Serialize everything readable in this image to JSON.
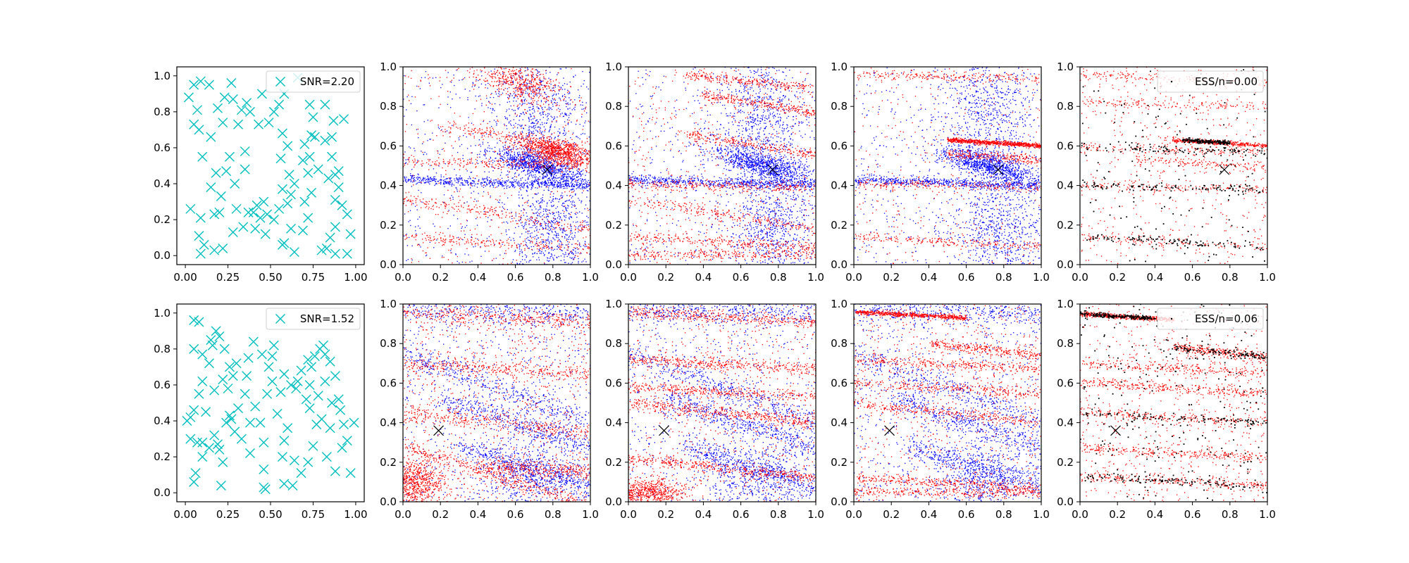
{
  "figure": {
    "layout": "2 rows x 5 columns of scatter panels",
    "background": "#ffffff"
  },
  "colors": {
    "sensor": "#00bfbf",
    "particle_blue": "#0000ff",
    "particle_red": "#ff0000",
    "particle_black": "#000000",
    "true_position": "#000000"
  },
  "chart_data": [
    {
      "type": "scatter",
      "row": 1,
      "col": 1,
      "panel": "sensors",
      "xlim": [
        -0.05,
        1.05
      ],
      "ylim": [
        -0.05,
        1.05
      ],
      "xticks": [
        "0.00",
        "0.25",
        "0.50",
        "0.75",
        "1.00"
      ],
      "yticks": [
        "0.0",
        "0.2",
        "0.4",
        "0.6",
        "0.8",
        "1.0"
      ],
      "marker": "x",
      "color": "#00bfbf",
      "approx_points": 100,
      "legend": {
        "label": "SNR=2.20",
        "position": "upper right"
      },
      "points": [
        [
          0.02,
          0.88
        ],
        [
          0.05,
          0.95
        ],
        [
          0.07,
          0.81
        ],
        [
          0.09,
          0.97
        ],
        [
          0.05,
          0.73
        ],
        [
          0.08,
          0.7
        ],
        [
          0.1,
          0.55
        ],
        [
          0.15,
          0.66
        ],
        [
          0.14,
          0.95
        ],
        [
          0.19,
          0.82
        ],
        [
          0.22,
          0.74
        ],
        [
          0.23,
          0.88
        ],
        [
          0.27,
          0.96
        ],
        [
          0.28,
          0.87
        ],
        [
          0.24,
          0.47
        ],
        [
          0.26,
          0.55
        ],
        [
          0.18,
          0.46
        ],
        [
          0.15,
          0.38
        ],
        [
          0.21,
          0.33
        ],
        [
          0.03,
          0.26
        ],
        [
          0.09,
          0.21
        ],
        [
          0.08,
          0.11
        ],
        [
          0.11,
          0.06
        ],
        [
          0.09,
          0.01
        ],
        [
          0.17,
          0.23
        ],
        [
          0.2,
          0.24
        ],
        [
          0.22,
          0.04
        ],
        [
          0.17,
          0.03
        ],
        [
          0.28,
          0.13
        ],
        [
          0.3,
          0.26
        ],
        [
          0.29,
          0.4
        ],
        [
          0.35,
          0.48
        ],
        [
          0.35,
          0.58
        ],
        [
          0.31,
          0.73
        ],
        [
          0.33,
          0.81
        ],
        [
          0.36,
          0.85
        ],
        [
          0.38,
          0.8
        ],
        [
          0.45,
          0.9
        ],
        [
          0.43,
          0.73
        ],
        [
          0.49,
          0.74
        ],
        [
          0.52,
          0.8
        ],
        [
          0.55,
          0.84
        ],
        [
          0.58,
          0.9
        ],
        [
          0.57,
          0.68
        ],
        [
          0.6,
          0.61
        ],
        [
          0.56,
          0.54
        ],
        [
          0.61,
          0.45
        ],
        [
          0.57,
          0.37
        ],
        [
          0.62,
          0.34
        ],
        [
          0.64,
          0.4
        ],
        [
          0.6,
          0.29
        ],
        [
          0.55,
          0.26
        ],
        [
          0.48,
          0.23
        ],
        [
          0.46,
          0.3
        ],
        [
          0.42,
          0.28
        ],
        [
          0.44,
          0.21
        ],
        [
          0.4,
          0.24
        ],
        [
          0.37,
          0.24
        ],
        [
          0.34,
          0.16
        ],
        [
          0.41,
          0.15
        ],
        [
          0.47,
          0.12
        ],
        [
          0.52,
          0.2
        ],
        [
          0.58,
          0.07
        ],
        [
          0.57,
          0.06
        ],
        [
          0.62,
          0.15
        ],
        [
          0.64,
          0.02
        ],
        [
          0.69,
          0.14
        ],
        [
          0.72,
          0.21
        ],
        [
          0.7,
          0.3
        ],
        [
          0.74,
          0.35
        ],
        [
          0.72,
          0.46
        ],
        [
          0.73,
          0.55
        ],
        [
          0.7,
          0.62
        ],
        [
          0.74,
          0.67
        ],
        [
          0.76,
          0.66
        ],
        [
          0.78,
          0.48
        ],
        [
          0.75,
          0.77
        ],
        [
          0.73,
          0.84
        ],
        [
          0.66,
          0.99
        ],
        [
          0.82,
          0.84
        ],
        [
          0.86,
          0.66
        ],
        [
          0.87,
          0.75
        ],
        [
          0.82,
          0.64
        ],
        [
          0.9,
          0.47
        ],
        [
          0.88,
          0.45
        ],
        [
          0.84,
          0.43
        ],
        [
          0.9,
          0.38
        ],
        [
          0.88,
          0.31
        ],
        [
          0.92,
          0.28
        ],
        [
          0.95,
          0.23
        ],
        [
          0.97,
          0.12
        ],
        [
          0.88,
          0.16
        ],
        [
          0.85,
          0.1
        ],
        [
          0.83,
          0.04
        ],
        [
          0.88,
          0.01
        ],
        [
          0.95,
          0.01
        ],
        [
          0.8,
          0.03
        ],
        [
          0.93,
          0.76
        ],
        [
          0.86,
          0.55
        ],
        [
          0.69,
          0.53
        ]
      ]
    },
    {
      "type": "scatter",
      "row": 1,
      "col": 2,
      "panel": "particles",
      "xlim": [
        0,
        1
      ],
      "ylim": [
        0,
        1
      ],
      "xticks": [
        "0.0",
        "0.2",
        "0.4",
        "0.6",
        "0.8",
        "1.0"
      ],
      "yticks": [
        "0.0",
        "0.2",
        "0.4",
        "0.6",
        "0.8",
        "1.0"
      ],
      "series": [
        {
          "color": "#0000ff",
          "approx_points": 3500
        },
        {
          "color": "#ff0000",
          "approx_points": 3500
        }
      ],
      "true_position": [
        0.77,
        0.48
      ]
    },
    {
      "type": "scatter",
      "row": 1,
      "col": 3,
      "panel": "particles",
      "xlim": [
        0,
        1
      ],
      "ylim": [
        0,
        1
      ],
      "xticks": [
        "0.0",
        "0.2",
        "0.4",
        "0.6",
        "0.8",
        "1.0"
      ],
      "yticks": [
        "0.0",
        "0.2",
        "0.4",
        "0.6",
        "0.8",
        "1.0"
      ],
      "series": [
        {
          "color": "#0000ff",
          "approx_points": 3500
        },
        {
          "color": "#ff0000",
          "approx_points": 3000
        }
      ],
      "true_position": [
        0.77,
        0.48
      ]
    },
    {
      "type": "scatter",
      "row": 1,
      "col": 4,
      "panel": "particles",
      "xlim": [
        0,
        1
      ],
      "ylim": [
        0,
        1
      ],
      "xticks": [
        "0.0",
        "0.2",
        "0.4",
        "0.6",
        "0.8",
        "1.0"
      ],
      "yticks": [
        "0.0",
        "0.2",
        "0.4",
        "0.6",
        "0.8",
        "1.0"
      ],
      "series": [
        {
          "color": "#0000ff",
          "approx_points": 3500
        },
        {
          "color": "#ff0000",
          "approx_points": 2500
        }
      ],
      "true_position": [
        0.77,
        0.48
      ]
    },
    {
      "type": "scatter",
      "row": 1,
      "col": 5,
      "panel": "weighted particles",
      "xlim": [
        0,
        1
      ],
      "ylim": [
        0,
        1
      ],
      "xticks": [
        "0.0",
        "0.2",
        "0.4",
        "0.6",
        "0.8",
        "1.0"
      ],
      "yticks": [
        "0.0",
        "0.2",
        "0.4",
        "0.6",
        "0.8",
        "1.0"
      ],
      "series": [
        {
          "color": "#ff0000",
          "approx_points": 1800
        },
        {
          "color": "#000000",
          "approx_points": 500
        }
      ],
      "legend": {
        "label": "ESS/n=0.00",
        "position": "upper right"
      },
      "true_position": [
        0.77,
        0.48
      ]
    },
    {
      "type": "scatter",
      "row": 2,
      "col": 1,
      "panel": "sensors",
      "xlim": [
        -0.05,
        1.05
      ],
      "ylim": [
        -0.05,
        1.05
      ],
      "xticks": [
        "0.00",
        "0.25",
        "0.50",
        "0.75",
        "1.00"
      ],
      "yticks": [
        "0.0",
        "0.2",
        "0.4",
        "0.6",
        "0.8",
        "1.0"
      ],
      "marker": "x",
      "color": "#00bfbf",
      "approx_points": 100,
      "legend": {
        "label": "SNR=1.52",
        "position": "upper right"
      },
      "points": [
        [
          0.05,
          0.96
        ],
        [
          0.08,
          0.95
        ],
        [
          0.05,
          0.8
        ],
        [
          0.1,
          0.77
        ],
        [
          0.15,
          0.85
        ],
        [
          0.18,
          0.9
        ],
        [
          0.2,
          0.87
        ],
        [
          0.23,
          0.8
        ],
        [
          0.16,
          0.82
        ],
        [
          0.14,
          0.72
        ],
        [
          0.1,
          0.62
        ],
        [
          0.08,
          0.55
        ],
        [
          0.17,
          0.57
        ],
        [
          0.26,
          0.7
        ],
        [
          0.22,
          0.63
        ],
        [
          0.25,
          0.58
        ],
        [
          0.28,
          0.65
        ],
        [
          0.3,
          0.72
        ],
        [
          0.36,
          0.65
        ],
        [
          0.37,
          0.75
        ],
        [
          0.4,
          0.84
        ],
        [
          0.45,
          0.77
        ],
        [
          0.49,
          0.7
        ],
        [
          0.51,
          0.76
        ],
        [
          0.52,
          0.82
        ],
        [
          0.56,
          0.56
        ],
        [
          0.58,
          0.66
        ],
        [
          0.62,
          0.6
        ],
        [
          0.66,
          0.62
        ],
        [
          0.68,
          0.68
        ],
        [
          0.72,
          0.74
        ],
        [
          0.74,
          0.7
        ],
        [
          0.76,
          0.76
        ],
        [
          0.79,
          0.8
        ],
        [
          0.81,
          0.82
        ],
        [
          0.82,
          0.77
        ],
        [
          0.85,
          0.73
        ],
        [
          0.88,
          0.65
        ],
        [
          0.9,
          0.52
        ],
        [
          0.86,
          0.5
        ],
        [
          0.82,
          0.62
        ],
        [
          0.78,
          0.54
        ],
        [
          0.73,
          0.47
        ],
        [
          0.73,
          0.6
        ],
        [
          0.71,
          0.52
        ],
        [
          0.65,
          0.58
        ],
        [
          0.03,
          0.42
        ],
        [
          0.05,
          0.46
        ],
        [
          0.03,
          0.3
        ],
        [
          0.07,
          0.28
        ],
        [
          0.1,
          0.2
        ],
        [
          0.14,
          0.25
        ],
        [
          0.17,
          0.32
        ],
        [
          0.2,
          0.24
        ],
        [
          0.22,
          0.17
        ],
        [
          0.21,
          0.04
        ],
        [
          0.27,
          0.41
        ],
        [
          0.26,
          0.43
        ],
        [
          0.29,
          0.34
        ],
        [
          0.33,
          0.3
        ],
        [
          0.38,
          0.22
        ],
        [
          0.38,
          0.39
        ],
        [
          0.44,
          0.39
        ],
        [
          0.46,
          0.28
        ],
        [
          0.46,
          0.13
        ],
        [
          0.47,
          0.02
        ],
        [
          0.46,
          0.03
        ],
        [
          0.57,
          0.2
        ],
        [
          0.58,
          0.29
        ],
        [
          0.6,
          0.36
        ],
        [
          0.64,
          0.18
        ],
        [
          0.58,
          0.05
        ],
        [
          0.63,
          0.04
        ],
        [
          0.68,
          0.11
        ],
        [
          0.72,
          0.17
        ],
        [
          0.75,
          0.26
        ],
        [
          0.77,
          0.38
        ],
        [
          0.8,
          0.41
        ],
        [
          0.85,
          0.36
        ],
        [
          0.91,
          0.46
        ],
        [
          0.93,
          0.38
        ],
        [
          0.95,
          0.29
        ],
        [
          0.92,
          0.25
        ],
        [
          0.88,
          0.12
        ],
        [
          0.97,
          0.11
        ],
        [
          0.99,
          0.39
        ],
        [
          0.01,
          0.4
        ],
        [
          0.05,
          0.06
        ],
        [
          0.06,
          0.11
        ],
        [
          0.1,
          0.28
        ],
        [
          0.12,
          0.45
        ],
        [
          0.19,
          0.27
        ],
        [
          0.24,
          0.39
        ],
        [
          0.31,
          0.47
        ],
        [
          0.35,
          0.55
        ],
        [
          0.41,
          0.48
        ],
        [
          0.48,
          0.55
        ],
        [
          0.51,
          0.62
        ],
        [
          0.54,
          0.44
        ],
        [
          0.83,
          0.2
        ]
      ]
    },
    {
      "type": "scatter",
      "row": 2,
      "col": 2,
      "panel": "particles",
      "xlim": [
        0,
        1
      ],
      "ylim": [
        0,
        1
      ],
      "xticks": [
        "0.0",
        "0.2",
        "0.4",
        "0.6",
        "0.8",
        "1.0"
      ],
      "yticks": [
        "0.0",
        "0.2",
        "0.4",
        "0.6",
        "0.8",
        "1.0"
      ],
      "series": [
        {
          "color": "#0000ff",
          "approx_points": 3000
        },
        {
          "color": "#ff0000",
          "approx_points": 3500
        }
      ],
      "true_position": [
        0.19,
        0.36
      ]
    },
    {
      "type": "scatter",
      "row": 2,
      "col": 3,
      "panel": "particles",
      "xlim": [
        0,
        1
      ],
      "ylim": [
        0,
        1
      ],
      "xticks": [
        "0.0",
        "0.2",
        "0.4",
        "0.6",
        "0.8",
        "1.0"
      ],
      "yticks": [
        "0.0",
        "0.2",
        "0.4",
        "0.6",
        "0.8",
        "1.0"
      ],
      "series": [
        {
          "color": "#0000ff",
          "approx_points": 3000
        },
        {
          "color": "#ff0000",
          "approx_points": 3500
        }
      ],
      "true_position": [
        0.19,
        0.36
      ]
    },
    {
      "type": "scatter",
      "row": 2,
      "col": 4,
      "panel": "particles",
      "xlim": [
        0,
        1
      ],
      "ylim": [
        0,
        1
      ],
      "xticks": [
        "0.0",
        "0.2",
        "0.4",
        "0.6",
        "0.8",
        "1.0"
      ],
      "yticks": [
        "0.0",
        "0.2",
        "0.4",
        "0.6",
        "0.8",
        "1.0"
      ],
      "series": [
        {
          "color": "#0000ff",
          "approx_points": 2800
        },
        {
          "color": "#ff0000",
          "approx_points": 3200
        }
      ],
      "true_position": [
        0.19,
        0.36
      ]
    },
    {
      "type": "scatter",
      "row": 2,
      "col": 5,
      "panel": "weighted particles",
      "xlim": [
        0,
        1
      ],
      "ylim": [
        0,
        1
      ],
      "xticks": [
        "0.0",
        "0.2",
        "0.4",
        "0.6",
        "0.8",
        "1.0"
      ],
      "yticks": [
        "0.0",
        "0.2",
        "0.4",
        "0.6",
        "0.8",
        "1.0"
      ],
      "series": [
        {
          "color": "#ff0000",
          "approx_points": 2800
        },
        {
          "color": "#000000",
          "approx_points": 700
        }
      ],
      "legend": {
        "label": "ESS/n=0.06",
        "position": "upper right"
      },
      "true_position": [
        0.19,
        0.36
      ]
    }
  ]
}
